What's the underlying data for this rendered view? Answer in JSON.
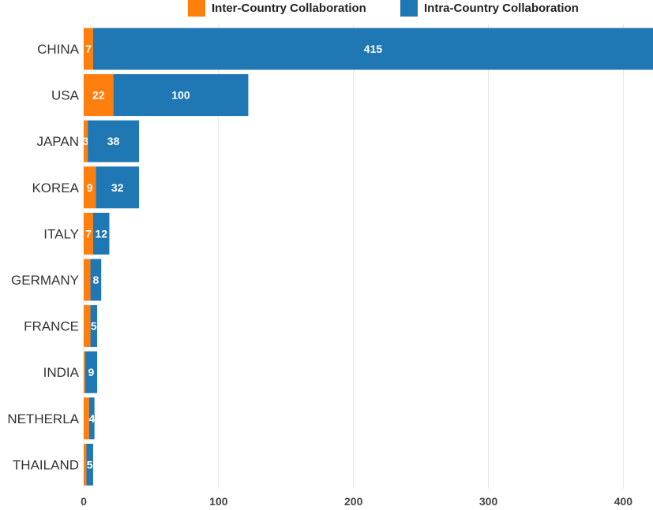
{
  "chart_data": {
    "type": "bar",
    "orientation": "horizontal",
    "stacked": true,
    "categories": [
      "CHINA",
      "USA",
      "JAPAN",
      "KOREA",
      "ITALY",
      "GERMANY",
      "FRANCE",
      "INDIA",
      "NETHERLA",
      "THAILAND"
    ],
    "series": [
      {
        "name": "Inter-Country Collaboration",
        "color": "#ff7f0e",
        "values": [
          7,
          22,
          3,
          9,
          7,
          5,
          5,
          1,
          4,
          2
        ],
        "labels": [
          "7",
          "22",
          "3",
          "9",
          "7",
          "",
          "",
          "",
          "",
          ""
        ]
      },
      {
        "name": "Intra-Country Collaboration",
        "color": "#1f77b4",
        "values": [
          415,
          100,
          38,
          32,
          12,
          8,
          5,
          9,
          4,
          5
        ],
        "labels": [
          "415",
          "100",
          "38",
          "32",
          "12",
          "8",
          "5",
          "9",
          "4",
          "5"
        ]
      }
    ],
    "xlim": [
      0,
      422
    ],
    "xticks": [
      0,
      100,
      200,
      300,
      400
    ],
    "grid": true,
    "legend_position": "top"
  }
}
